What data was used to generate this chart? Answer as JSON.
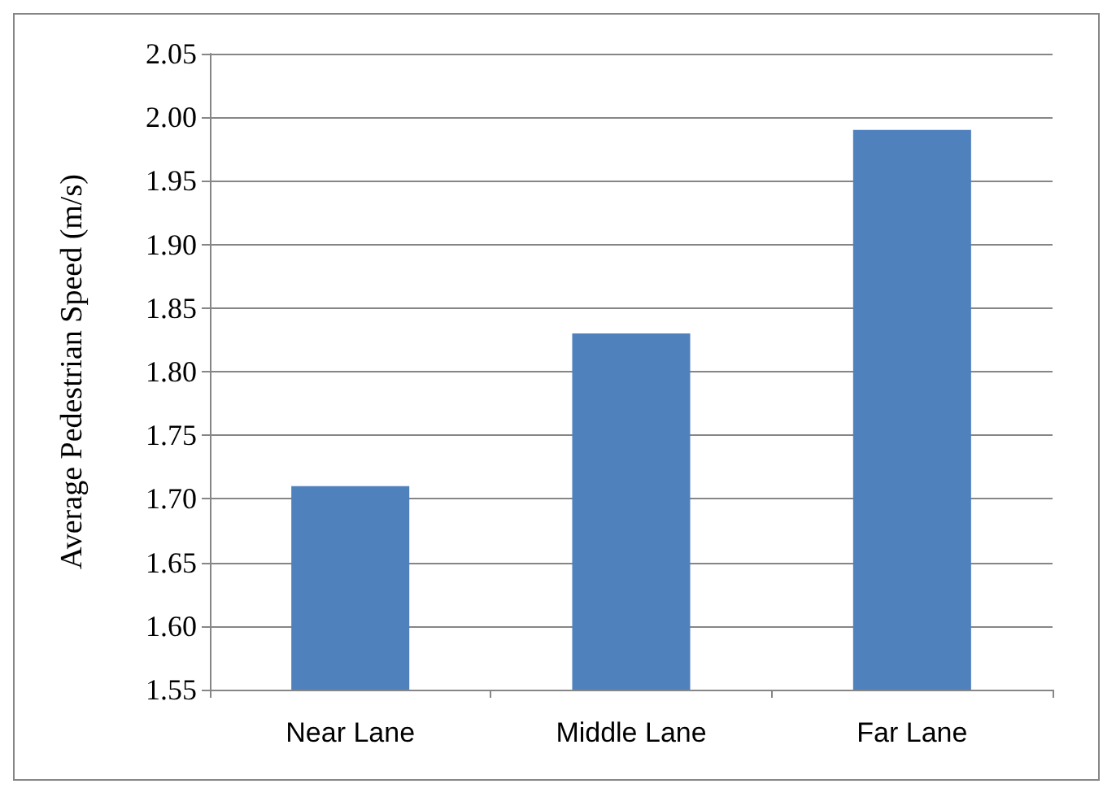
{
  "chart_data": {
    "type": "bar",
    "ylabel": "Average Pedestrian Speed (m/s)",
    "categories": [
      "Near Lane",
      "Middle Lane",
      "Far Lane"
    ],
    "values": [
      1.71,
      1.83,
      1.99
    ],
    "color": "#4f81bd",
    "ylim": [
      1.55,
      2.05
    ],
    "yticks": [
      {
        "value": 1.55,
        "label": "1.55"
      },
      {
        "value": 1.6,
        "label": "1.60"
      },
      {
        "value": 1.65,
        "label": "1.65"
      },
      {
        "value": 1.7,
        "label": "1.70"
      },
      {
        "value": 1.75,
        "label": "1.75"
      },
      {
        "value": 1.8,
        "label": "1.80"
      },
      {
        "value": 1.85,
        "label": "1.85"
      },
      {
        "value": 1.9,
        "label": "1.90"
      },
      {
        "value": 1.95,
        "label": "1.95"
      },
      {
        "value": 2.0,
        "label": "2.00"
      },
      {
        "value": 2.05,
        "label": "2.05"
      }
    ],
    "grid": "y"
  }
}
